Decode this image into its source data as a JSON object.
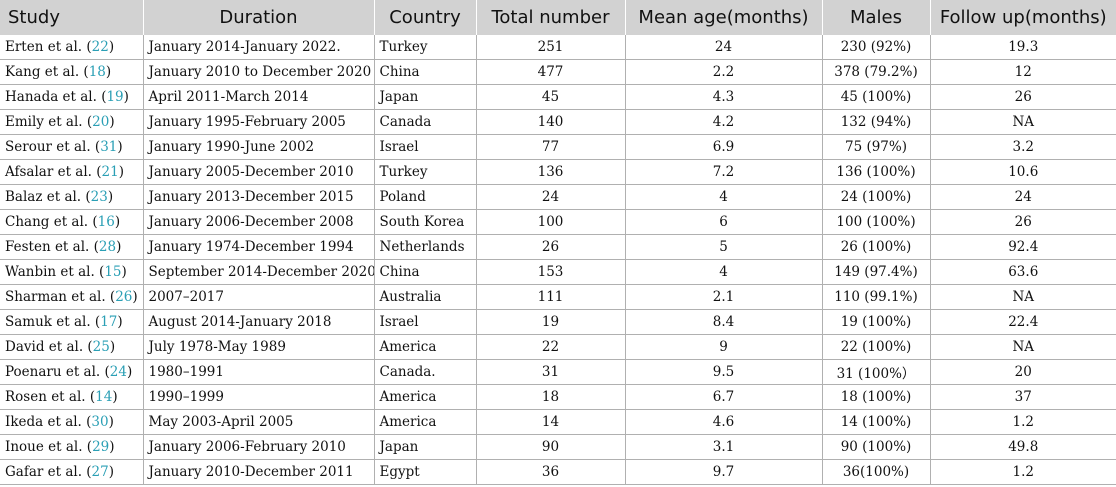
{
  "headers": [
    "Study",
    "Duration",
    "Country",
    "Total number",
    "Mean age(months)",
    "Males",
    "Follow up(months)"
  ],
  "rows": [
    {
      "author": "Erten et al. (",
      "ref": "22",
      "duration": "January 2014-January 2022.",
      "country": "Turkey",
      "total": "251",
      "age": "24",
      "males": "230 (92%)",
      "follow": "19.3"
    },
    {
      "author": "Kang et al. (",
      "ref": "18",
      "duration": "January 2010 to December 2020",
      "country": "China",
      "total": "477",
      "age": "2.2",
      "males": "378 (79.2%)",
      "follow": "12"
    },
    {
      "author": "Hanada et al. (",
      "ref": "19",
      "duration": "April 2011-March 2014",
      "country": "Japan",
      "total": "45",
      "age": "4.3",
      "males": "45 (100%)",
      "follow": "26"
    },
    {
      "author": "Emily et al. (",
      "ref": "20",
      "duration": "January 1995-February 2005",
      "country": "Canada",
      "total": "140",
      "age": "4.2",
      "males": "132 (94%)",
      "follow": "NA"
    },
    {
      "author": "Serour et al. (",
      "ref": "31",
      "duration": "January 1990-June 2002",
      "country": "Israel",
      "total": "77",
      "age": "6.9",
      "males": "75 (97%)",
      "follow": "3.2"
    },
    {
      "author": "Afsalar et al. (",
      "ref": "21",
      "duration": "January 2005-December 2010",
      "country": "Turkey",
      "total": "136",
      "age": "7.2",
      "males": "136 (100%)",
      "follow": "10.6"
    },
    {
      "author": "Balaz et al. (",
      "ref": "23",
      "duration": "January 2013-December 2015",
      "country": "Poland",
      "total": "24",
      "age": "4",
      "males": "24 (100%)",
      "follow": "24"
    },
    {
      "author": "Chang et al. (",
      "ref": "16",
      "duration": "January 2006-December 2008",
      "country": "South Korea",
      "total": "100",
      "age": "6",
      "males": "100 (100%)",
      "follow": "26"
    },
    {
      "author": "Festen et al. (",
      "ref": "28",
      "duration": "January 1974-December 1994",
      "country": "Netherlands",
      "total": "26",
      "age": "5",
      "males": "26 (100%)",
      "follow": "92.4"
    },
    {
      "author": "Wanbin et al. (",
      "ref": "15",
      "duration": "September 2014-December 2020",
      "country": "China",
      "total": "153",
      "age": "4",
      "males": "149 (97.4%)",
      "follow": "63.6"
    },
    {
      "author": "Sharman et al. (",
      "ref": "26",
      "duration": "2007–2017",
      "country": "Australia",
      "total": "111",
      "age": "2.1",
      "males": "110 (99.1%)",
      "follow": "NA"
    },
    {
      "author": "Samuk et al. (",
      "ref": "17",
      "duration": "August 2014-January 2018",
      "country": "Israel",
      "total": "19",
      "age": "8.4",
      "males": "19 (100%)",
      "follow": "22.4"
    },
    {
      "author": "David et al. (",
      "ref": "25",
      "duration": "July 1978-May 1989",
      "country": "America",
      "total": "22",
      "age": "9",
      "males": "22 (100%)",
      "follow": "NA"
    },
    {
      "author": "Poenaru et al. (",
      "ref": "24",
      "duration": "1980–1991",
      "country": "Canada.",
      "total": "31",
      "age": "9.5",
      "males": "31 (100%）",
      "follow": "20"
    },
    {
      "author": "Rosen et al. (",
      "ref": "14",
      "duration": "1990–1999",
      "country": "America",
      "total": "18",
      "age": "6.7",
      "males": "18 (100%)",
      "follow": "37"
    },
    {
      "author": "Ikeda et al. (",
      "ref": "30",
      "duration": "May 2003-April 2005",
      "country": "America",
      "total": "14",
      "age": "4.6",
      "males": "14 (100%)",
      "follow": "1.2"
    },
    {
      "author": "Inoue et al. (",
      "ref": "29",
      "duration": "January 2006-February 2010",
      "country": "Japan",
      "total": "90",
      "age": "3.1",
      "males": "90 (100%)",
      "follow": "49.8"
    },
    {
      "author": "Gafar et al. (",
      "ref": "27",
      "duration": "January 2010-December 2011",
      "country": "Egypt",
      "total": "36",
      "age": "9.7",
      "males": "36(100%)",
      "follow": "1.2"
    }
  ],
  "ref_close": ")",
  "colors": {
    "header_bg": "#d2d2d2",
    "ref_link": "#2a9fb5",
    "grid": "#b0b0b0"
  }
}
